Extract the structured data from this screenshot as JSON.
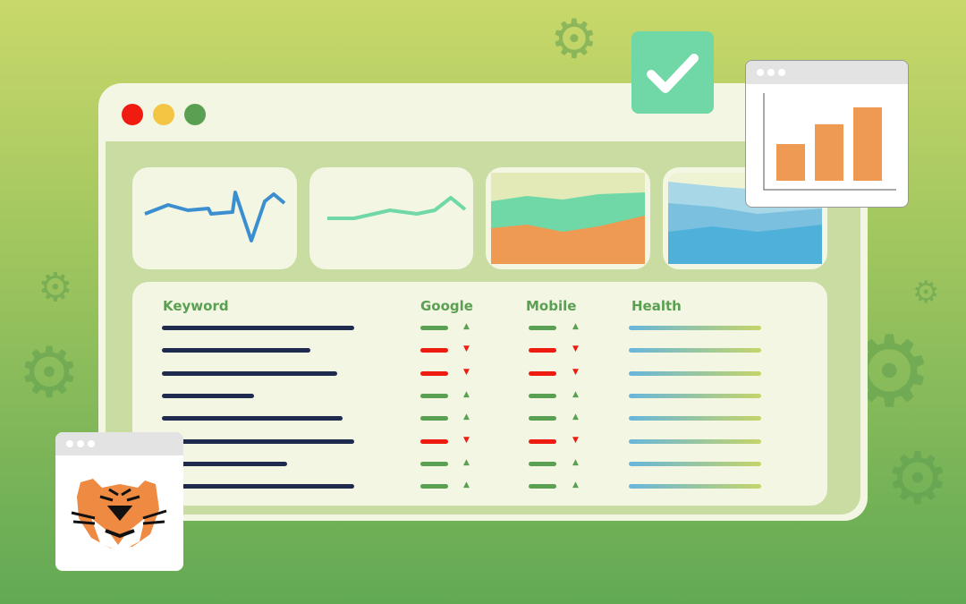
{
  "window": {
    "controls": [
      {
        "name": "close",
        "color": "#f01c10"
      },
      {
        "name": "minimize",
        "color": "#f4c542"
      },
      {
        "name": "maximize",
        "color": "#5aa052"
      }
    ]
  },
  "table": {
    "headers": {
      "keyword": "Keyword",
      "google": "Google",
      "mobile": "Mobile",
      "health": "Health"
    },
    "rows": [
      {
        "keyword_fill": 1.0,
        "google": "up",
        "mobile": "up"
      },
      {
        "keyword_fill": 0.77,
        "google": "down",
        "mobile": "down"
      },
      {
        "keyword_fill": 0.91,
        "google": "down",
        "mobile": "down"
      },
      {
        "keyword_fill": 0.48,
        "google": "up",
        "mobile": "up"
      },
      {
        "keyword_fill": 0.94,
        "google": "up",
        "mobile": "up"
      },
      {
        "keyword_fill": 1.0,
        "google": "down",
        "mobile": "down"
      },
      {
        "keyword_fill": 0.65,
        "google": "up",
        "mobile": "up"
      },
      {
        "keyword_fill": 1.0,
        "google": "up",
        "mobile": "up"
      }
    ]
  },
  "colors": {
    "up": "#5aa052",
    "down": "#ee1c10",
    "keyword": "#1f2a4f",
    "accent": "#5aa052",
    "bars": "#ee9a52"
  },
  "popup_chart": {
    "bar_levels": [
      0.5,
      0.77,
      1.0
    ]
  },
  "icons": [
    "gear-icon",
    "checkmark-icon",
    "tiger-logo"
  ]
}
